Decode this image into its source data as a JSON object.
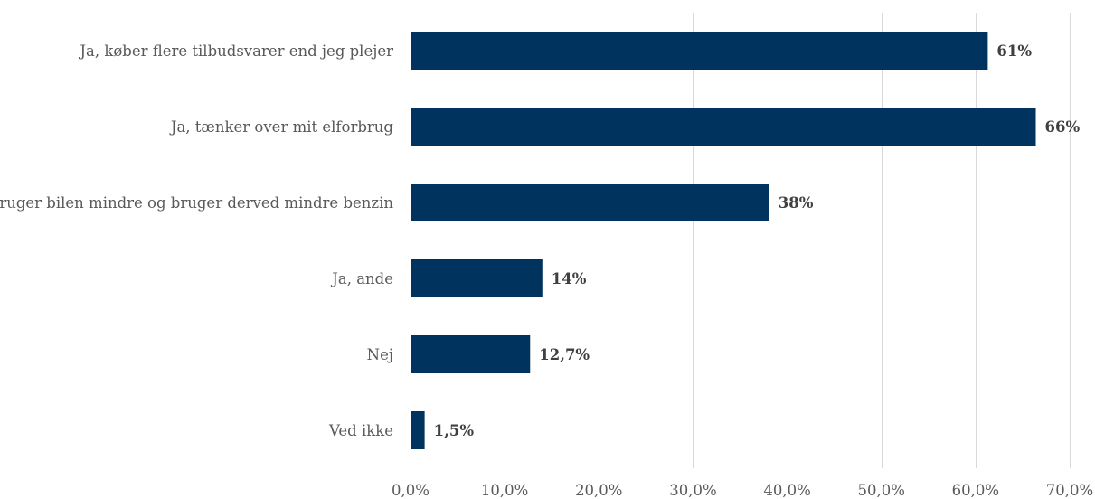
{
  "chart_data": {
    "type": "bar",
    "orientation": "horizontal",
    "categories": [
      "Ja, køber flere tilbudsvarer end jeg plejer",
      "Ja, tænker over mit elforbrug",
      "Ja, bruger bilen mindre og bruger derved mindre benzin",
      "Ja, ande",
      "Nej",
      "Ved ikke"
    ],
    "values": [
      61.3,
      66.4,
      38.1,
      14.0,
      12.7,
      1.5
    ],
    "data_labels": [
      "61%",
      "66%",
      "38%",
      "14%",
      "12,7%",
      "1,5%"
    ],
    "xlim": [
      0,
      70
    ],
    "xticks": [
      0,
      10,
      20,
      30,
      40,
      50,
      60,
      70
    ],
    "xtick_labels": [
      "0,0%",
      "10,0%",
      "20,0%",
      "30,0%",
      "40,0%",
      "50,0%",
      "60,0%",
      "70,0%"
    ],
    "grid": "vertical",
    "bar_color": "#00335e",
    "title": "",
    "xlabel": "",
    "ylabel": ""
  }
}
